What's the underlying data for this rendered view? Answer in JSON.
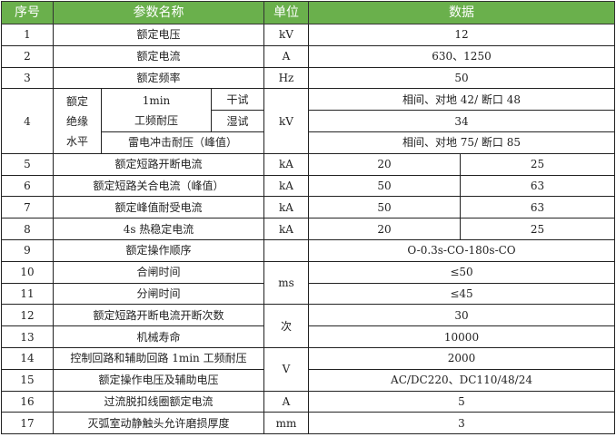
{
  "header": {
    "no": "序号",
    "name": "参数名称",
    "unit": "单位",
    "data": "数据"
  },
  "rows": {
    "r1": {
      "no": "1",
      "name": "额定电压",
      "unit": "kV",
      "value": "12"
    },
    "r2": {
      "no": "2",
      "name": "额定电流",
      "unit": "A",
      "value": "630、1250"
    },
    "r3": {
      "no": "3",
      "name": "额定频率",
      "unit": "Hz",
      "value": "50"
    },
    "r4": {
      "no": "4",
      "group": "额定绝缘水平",
      "group_lines": [
        "额定",
        "绝缘",
        "水平"
      ],
      "pf_line1": "1min",
      "pf_line2": "工频耐压",
      "dry": "干试",
      "wet": "湿试",
      "lightning": "雷电冲击耐压（峰值）",
      "unit": "kV",
      "dry_value": "相间、对地 42/ 断口 48",
      "wet_value": "34",
      "lightning_value": "相间、对地 75/ 断口 85"
    },
    "r5": {
      "no": "5",
      "name": "额定短路开断电流",
      "unit": "kA",
      "v1": "20",
      "v2": "25"
    },
    "r6": {
      "no": "6",
      "name": "额定短路关合电流（峰值）",
      "unit": "kA",
      "v1": "50",
      "v2": "63"
    },
    "r7": {
      "no": "7",
      "name": "额定峰值耐受电流",
      "unit": "kA",
      "v1": "50",
      "v2": "63"
    },
    "r8": {
      "no": "8",
      "name": "4s 热稳定电流",
      "unit": "kA",
      "v1": "20",
      "v2": "25"
    },
    "r9": {
      "no": "9",
      "name": "额定操作顺序",
      "unit": "",
      "value": "O-0.3s-CO-180s-CO"
    },
    "r10": {
      "no": "10",
      "name": "合闸时间",
      "unit": "ms",
      "value": "≤50"
    },
    "r11": {
      "no": "11",
      "name": "分闸时间",
      "value": "≤45"
    },
    "r12": {
      "no": "12",
      "name": "额定短路开断电流开断次数",
      "unit": "次",
      "value": "30"
    },
    "r13": {
      "no": "13",
      "name": "机械寿命",
      "value": "10000"
    },
    "r14": {
      "no": "14",
      "name": "控制回路和辅助回路 1min 工频耐压",
      "unit": "V",
      "value": "2000"
    },
    "r15": {
      "no": "15",
      "name": "额定操作电压及辅助电压",
      "value": "AC/DC220、DC110/48/24"
    },
    "r16": {
      "no": "16",
      "name": "过流脱扣线圈额定电流",
      "unit": "A",
      "value": "5"
    },
    "r17": {
      "no": "17",
      "name": "灭弧室动静触头允许磨损厚度",
      "unit": "mm",
      "value": "3"
    }
  },
  "colors": {
    "header_bg": "#6ab04c",
    "header_text": "#ffffff",
    "border": "#222222"
  }
}
